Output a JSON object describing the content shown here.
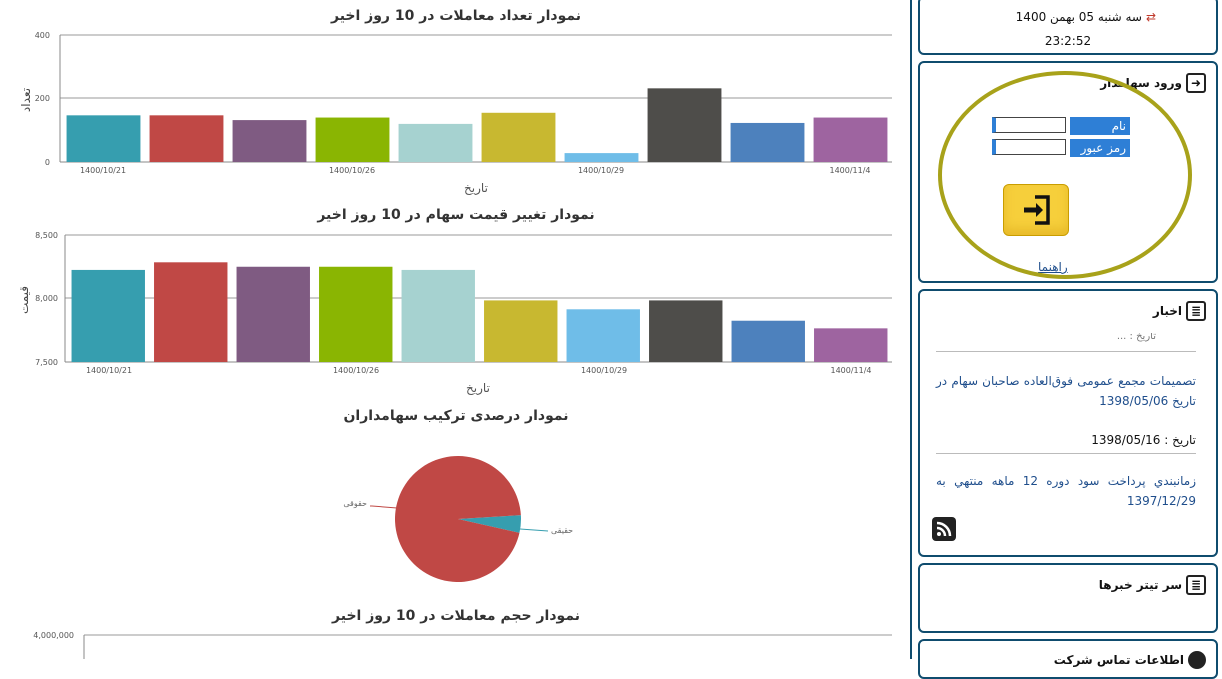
{
  "charts": {
    "count": {
      "title": "نمودار تعداد معاملات در 10 روز اخیر",
      "ylabel": "تعداد",
      "xlabel": "تاریخ",
      "yticks": [
        "0",
        "200",
        "400"
      ],
      "xticks": [
        "1400/10/21",
        "1400/10/26",
        "1400/10/29",
        "1400/11/4"
      ]
    },
    "price": {
      "title": "نمودار تغییر قیمت سهام در 10 روز اخیر",
      "ylabel": "قیمت",
      "xlabel": "تاریخ",
      "yticks": [
        "7,500",
        "8,000",
        "8,500"
      ],
      "xticks": [
        "1400/10/21",
        "1400/10/26",
        "1400/10/29",
        "1400/11/4"
      ]
    },
    "holders": {
      "title": "نمودار درصدی ترکیب سهامداران",
      "labels": [
        "حقوقی",
        "حقیقی"
      ]
    },
    "volume": {
      "title": "نمودار حجم معاملات در 10 روز اخیر",
      "yticks": [
        "4,000,000"
      ]
    }
  },
  "chart_data": [
    {
      "type": "bar",
      "title": "نمودار تعداد معاملات در 10 روز اخیر",
      "xlabel": "تاریخ",
      "ylabel": "تعداد",
      "ylim": [
        0,
        400
      ],
      "values": [
        147,
        147,
        132,
        140,
        120,
        155,
        28,
        232,
        123,
        140
      ],
      "colors": [
        "#369eaf",
        "#c04845",
        "#7f5b82",
        "#8ab502",
        "#a6d2d0",
        "#c8b830",
        "#6fbde8",
        "#4e4d4a",
        "#4d81bd",
        "#9e64a0"
      ],
      "tick_labels": [
        "1400/10/21",
        "1400/10/26",
        "1400/10/29",
        "1400/11/4"
      ]
    },
    {
      "type": "bar",
      "title": "نمودار تغییر قیمت سهام در 10 روز اخیر",
      "xlabel": "تاریخ",
      "ylabel": "قیمت",
      "ylim": [
        7500,
        8500
      ],
      "values": [
        8225,
        8285,
        8250,
        8250,
        8225,
        7985,
        7915,
        7985,
        7825,
        7765
      ],
      "colors": [
        "#369eaf",
        "#c04845",
        "#7f5b82",
        "#8ab502",
        "#a6d2d0",
        "#c8b830",
        "#6fbde8",
        "#4e4d4a",
        "#4d81bd",
        "#9e64a0"
      ],
      "tick_labels": [
        "1400/10/21",
        "1400/10/26",
        "1400/10/29",
        "1400/11/4"
      ]
    },
    {
      "type": "pie",
      "title": "نمودار درصدی ترکیب سهامداران",
      "labels": [
        "حقوقی",
        "حقیقی"
      ],
      "values": [
        95.5,
        4.5
      ],
      "colors": [
        "#c04845",
        "#369eaf"
      ]
    },
    {
      "type": "bar",
      "title": "نمودار حجم معاملات در 10 روز اخیر",
      "ylim": [
        0,
        4000000
      ],
      "values": []
    }
  ],
  "sidebar": {
    "datetime": {
      "date": "سه شنبه 05 بهمن 1400",
      "time": "23:2:52"
    },
    "login": {
      "title": "ورود سهامدار",
      "username_label": "نام کاربری :",
      "password_label": "رمز عبور :",
      "username_value": "",
      "password_value": "",
      "help_link": "راهنما",
      "highlight_color": "#a8a21a"
    },
    "news": {
      "title": "اخبار",
      "partial_top": "تاریخ : ...",
      "items": [
        {
          "title": "تصمیمات مجمع عمومی فوق‌العاده صاحبان سهام در تاریخ 1398/05/06",
          "date": "تاریخ : 1398/05/16"
        },
        {
          "title": "زمانبندي پرداخت سود دوره 12 ماهه منتهي به 1397/12/29"
        }
      ]
    },
    "headlines": {
      "title": "سر تیتر خبرها"
    },
    "company": {
      "title": "اطلاعات تماس شرکت"
    }
  }
}
